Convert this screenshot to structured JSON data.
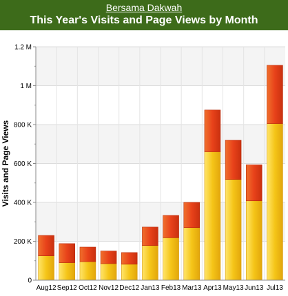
{
  "header": {
    "site_name": "Bersama Dakwah",
    "title": "This Year's Visits and Page Views by Month"
  },
  "colors": {
    "header_bg": "#3d6b1a",
    "visits_bar": "#f5c518",
    "pageviews_bar": "#e8421a"
  },
  "chart_data": {
    "type": "bar",
    "stacked": true,
    "title": "This Year's Visits and Page Views by Month",
    "ylabel": "Visits and Page Views",
    "xlabel": "",
    "ylim": [
      0,
      1200000
    ],
    "yticks": [
      0,
      200000,
      400000,
      600000,
      800000,
      1000000,
      1200000
    ],
    "ytick_labels": [
      "0",
      "200 K",
      "400 K",
      "600 K",
      "800 K",
      "1 M",
      "1.2 M"
    ],
    "grid": true,
    "legend": "none",
    "categories": [
      "Aug12",
      "Sep12",
      "Oct12",
      "Nov12",
      "Dec12",
      "Jan13",
      "Feb13",
      "Mar13",
      "Apr13",
      "May13",
      "Jun13",
      "Jul13"
    ],
    "series": [
      {
        "values": [
          125000,
          90000,
          95000,
          85000,
          82000,
          178000,
          218000,
          270000,
          660000,
          518000,
          408000,
          805000
        ],
        "color": "#f5c518"
      },
      {
        "values": [
          105000,
          98000,
          75000,
          65000,
          60000,
          95000,
          115000,
          130000,
          215000,
          202000,
          185000,
          300000
        ],
        "color": "#e8421a"
      }
    ]
  }
}
